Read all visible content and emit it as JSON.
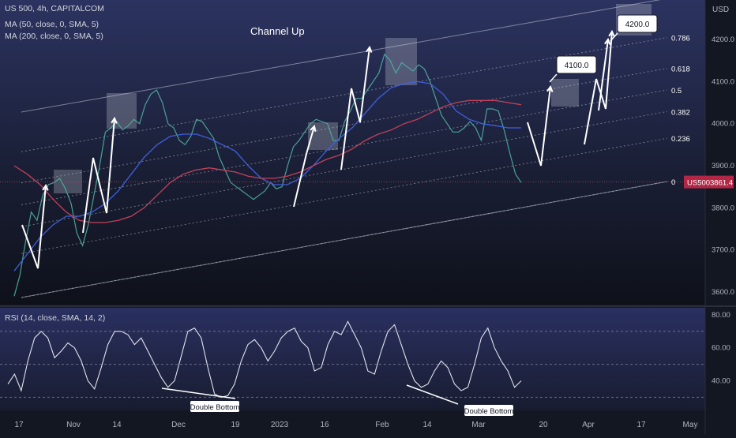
{
  "header": {
    "symbol_line": "US 500, 4h, CAPITALCOM",
    "ma1": "MA (50, close, 0, SMA, 5)",
    "ma2": "MA (200, close, 0, SMA, 5)",
    "currency": "USD"
  },
  "chart_data": [
    {
      "type": "line",
      "title": "Channel Up",
      "y_ticks": [
        "4200.0",
        "4100.0",
        "4000.0",
        "3900.0",
        "3800.0",
        "3700.0",
        "3600.0"
      ],
      "x_ticks": [
        "17",
        "Nov",
        "14",
        "Dec",
        "19",
        "2023",
        "16",
        "Feb",
        "14",
        "Mar",
        "20",
        "Apr",
        "17",
        "May"
      ],
      "ylim": [
        3580,
        4250
      ],
      "fib_levels": [
        {
          "label": "0.786",
          "value": 0.786
        },
        {
          "label": "0.618",
          "value": 0.618
        },
        {
          "label": "0.5",
          "value": 0.5
        },
        {
          "label": "0.382",
          "value": 0.382
        },
        {
          "label": "0.236",
          "value": 0.236
        },
        {
          "label": "0",
          "value": 0
        }
      ],
      "price_badge": {
        "symbol": "US500",
        "value": "3861.4",
        "price": 3861.4
      },
      "annotations": [
        {
          "text": "4100.0",
          "value": 4100
        },
        {
          "text": "4200.0",
          "value": 4200
        }
      ],
      "series": [
        {
          "values": [
            3590,
            3640,
            3720,
            3790,
            3770,
            3830,
            3855,
            3860,
            3870,
            3845,
            3810,
            3740,
            3710,
            3760,
            3830,
            3900,
            3980,
            3990,
            4005,
            3985,
            3995,
            4010,
            4000,
            4045,
            4070,
            4080,
            4050,
            4000,
            3990,
            3960,
            3950,
            3970,
            4010,
            4005,
            3985,
            3965,
            3920,
            3890,
            3860,
            3850,
            3840,
            3830,
            3820,
            3830,
            3840,
            3860,
            3845,
            3850,
            3900,
            3945,
            3960,
            3980,
            4000,
            4010,
            4005,
            4000,
            3960,
            3960,
            4005,
            4030,
            4060,
            4060,
            4080,
            4100,
            4120,
            4165,
            4150,
            4120,
            4145,
            4135,
            4125,
            4140,
            4130,
            4100,
            4060,
            4020,
            4000,
            3980,
            3980,
            3990,
            4005,
            3990,
            3960,
            4035,
            4035,
            4030,
            3985,
            3930,
            3880,
            3860
          ]
        },
        {
          "name": "MA (50, close, 0, SMA, 5)",
          "values": [
            3650,
            3690,
            3730,
            3760,
            3780,
            3780,
            3790,
            3810,
            3840,
            3880,
            3920,
            3950,
            3970,
            3975,
            3975,
            3965,
            3950,
            3935,
            3900,
            3870,
            3855,
            3855,
            3870,
            3900,
            3935,
            3965,
            3990,
            4025,
            4060,
            4085,
            4095,
            4100,
            4095,
            4070,
            4030,
            4010,
            4000,
            3995,
            3990,
            3990
          ]
        },
        {
          "name": "MA (200, close, 0, SMA, 5)",
          "values": [
            3900,
            3880,
            3855,
            3820,
            3790,
            3770,
            3765,
            3765,
            3770,
            3780,
            3800,
            3830,
            3860,
            3880,
            3890,
            3895,
            3890,
            3885,
            3875,
            3870,
            3870,
            3875,
            3885,
            3900,
            3915,
            3925,
            3940,
            3960,
            3975,
            3985,
            4000,
            4010,
            4025,
            4040,
            4050,
            4055,
            4055,
            4055,
            4050,
            4045
          ]
        }
      ]
    },
    {
      "type": "line",
      "title": "RSI (14, close, SMA, 14, 2)",
      "y_ticks": [
        "80.00",
        "60.00",
        "40.00"
      ],
      "ylim": [
        26,
        84
      ],
      "bands": [
        70,
        50,
        30
      ],
      "annotations": [
        "Double Bottom",
        "Double Bottom"
      ],
      "series": [
        {
          "values": [
            38,
            44,
            34,
            52,
            66,
            70,
            66,
            54,
            58,
            63,
            60,
            52,
            40,
            35,
            48,
            62,
            70,
            70,
            68,
            62,
            66,
            58,
            50,
            42,
            36,
            40,
            55,
            70,
            72,
            66,
            48,
            32,
            30,
            31,
            38,
            52,
            62,
            65,
            60,
            52,
            58,
            66,
            70,
            72,
            64,
            60,
            46,
            48,
            62,
            70,
            68,
            76,
            68,
            60,
            46,
            44,
            58,
            70,
            74,
            62,
            50,
            40,
            36,
            38,
            46,
            52,
            48,
            38,
            34,
            36,
            50,
            66,
            72,
            60,
            52,
            46,
            36,
            40
          ]
        }
      ]
    }
  ]
}
